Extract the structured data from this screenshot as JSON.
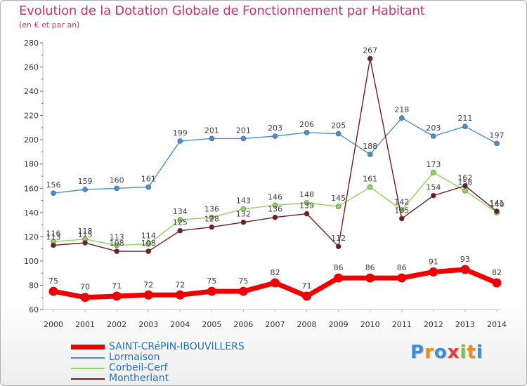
{
  "header": {
    "title": "Evolution de la Dotation Globale de Fonctionnement par Habitant",
    "subtitle": "(en € et par an)"
  },
  "logo": {
    "text": "Proxiti",
    "letters": [
      "P",
      "r",
      "o",
      "x",
      "i",
      "t",
      "i"
    ],
    "colors": [
      "#3b8fd6",
      "#f08a1c",
      "#3b8fd6",
      "#e63b2e",
      "#7cc142",
      "#f08a1c",
      "#3b8fd6"
    ]
  },
  "chart_data": {
    "type": "line",
    "title": "Evolution de la Dotation Globale de Fonctionnement par Habitant",
    "subtitle": "(en € et par an)",
    "xlabel": "",
    "ylabel": "",
    "x": [
      "2000",
      "2001",
      "2002",
      "2003",
      "2004",
      "2005",
      "2006",
      "2007",
      "2008",
      "2009",
      "2010",
      "2011",
      "2012",
      "2013",
      "2014"
    ],
    "ylim": [
      60,
      280
    ],
    "yticks": [
      "60",
      "80",
      "100",
      "120",
      "140",
      "160",
      "180",
      "200",
      "220",
      "240",
      "260",
      "280"
    ],
    "grid": false,
    "legend_position": "bottom-left",
    "series": [
      {
        "name": "SAINT-CRéPIN-IBOUVILLERS",
        "color": "#ee0000",
        "emphasis": true,
        "values": [
          75,
          70,
          71,
          72,
          72,
          75,
          75,
          82,
          71,
          86,
          86,
          86,
          91,
          93,
          82
        ],
        "labels": [
          "75",
          "70",
          "71",
          "72",
          "72",
          "75",
          "75",
          "82",
          "71",
          "86",
          "86",
          "86",
          "91",
          "93",
          "82"
        ]
      },
      {
        "name": "Lormaison",
        "color": "#4a8fcf",
        "emphasis": false,
        "values": [
          156,
          159,
          160,
          161,
          199,
          201,
          201,
          203,
          206,
          205,
          188,
          218,
          203,
          211,
          197
        ],
        "labels": [
          "156",
          "159",
          "160",
          "161",
          "199",
          "201",
          "201",
          "203",
          "206",
          "205",
          "188",
          "218",
          "203",
          "211",
          "197"
        ]
      },
      {
        "name": "Corbeil-Cerf",
        "color": "#8fd45a",
        "emphasis": false,
        "values": [
          116,
          118,
          113,
          114,
          134,
          136,
          143,
          146,
          148,
          145,
          161,
          142,
          173,
          158,
          140
        ],
        "labels": [
          "116",
          "118",
          "113",
          "114",
          "134",
          "136",
          "143",
          "146",
          "148",
          "145",
          "161",
          "142",
          "173",
          "158",
          "140"
        ]
      },
      {
        "name": "Montherlant",
        "color": "#6b1f1f",
        "emphasis": false,
        "values": [
          113,
          115,
          108,
          108,
          125,
          128,
          132,
          136,
          139,
          112,
          267,
          135,
          154,
          162,
          141
        ],
        "labels": [
          "113",
          "115",
          "108",
          "108",
          "125",
          "128",
          "132",
          "136",
          "139",
          "112",
          "267",
          "135",
          "154",
          "162",
          "141"
        ]
      }
    ]
  }
}
